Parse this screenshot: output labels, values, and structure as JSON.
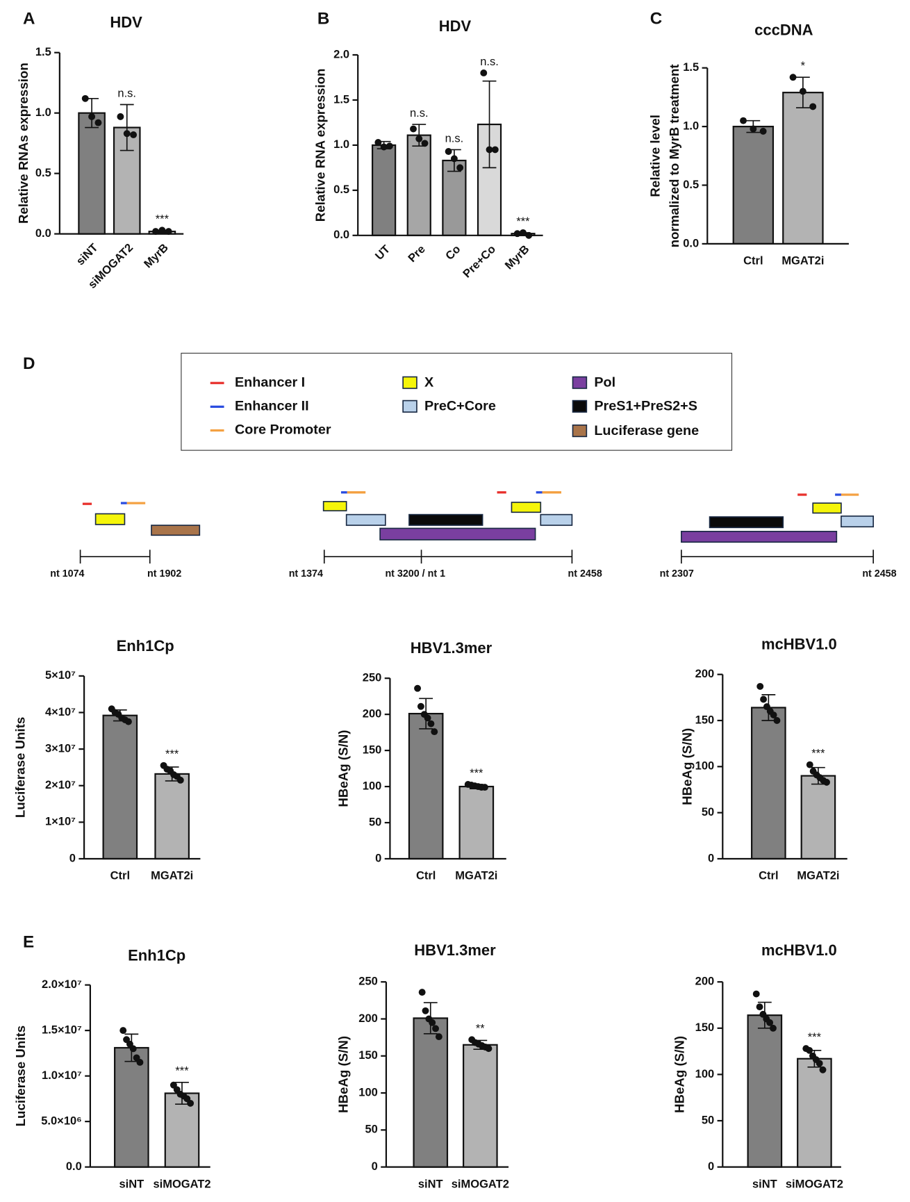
{
  "panel_labels": [
    "A",
    "B",
    "C",
    "D",
    "E"
  ],
  "diagram": {
    "legend": [
      {
        "label": "Enhancer I",
        "color": "#e8312d",
        "kind": "line"
      },
      {
        "label": "Enhancer II",
        "color": "#2b4de0",
        "kind": "line"
      },
      {
        "label": "Core Promoter",
        "color": "#f4a142",
        "kind": "line"
      },
      {
        "label": "X",
        "color": "#f5f50a",
        "kind": "box"
      },
      {
        "label": "PreC+Core",
        "color": "#b9d1ea",
        "kind": "box"
      },
      {
        "label": "Pol",
        "color": "#7a3fa0",
        "kind": "box"
      },
      {
        "label": "PreS1+PreS2+S",
        "color": "#0a0a0a",
        "kind": "box"
      },
      {
        "label": "Luciferase gene",
        "color": "#a9744a",
        "kind": "box"
      }
    ],
    "maps": [
      {
        "labels": [
          "nt 1074",
          "nt 1902"
        ]
      },
      {
        "labels": [
          "nt 1374",
          "nt 3200 / nt 1",
          "nt 2458"
        ]
      },
      {
        "labels": [
          "nt 2307",
          "nt 2458"
        ]
      }
    ]
  },
  "chart_data": [
    {
      "type": "bar",
      "title": "HDV",
      "ylabel": [
        "Relative RNAs expression"
      ],
      "categories": [
        "siNT",
        "siMOGAT2",
        "MyrB"
      ],
      "values": [
        1.0,
        0.88,
        0.02
      ],
      "errors": [
        0.12,
        0.19,
        0.01
      ],
      "points": [
        [
          1.12,
          0.97,
          0.92
        ],
        [
          0.97,
          0.83,
          0.82
        ],
        [
          0.02,
          0.03,
          0.02
        ]
      ],
      "annotations": [
        null,
        "n.s.",
        "***"
      ],
      "colors": [
        "#808080",
        "#b3b3b3",
        "#e0e0e0"
      ],
      "ylim": [
        0,
        1.5
      ],
      "yticks": [
        {
          "value": 0,
          "label": "0.0"
        },
        0.5,
        {
          "value": 1,
          "label": "1.0"
        },
        1.5
      ]
    },
    {
      "type": "bar",
      "title": "HDV",
      "ylabel": [
        "Relative RNA expression"
      ],
      "categories": [
        "UT",
        "Pre",
        "Co",
        "Pre+Co",
        "MyrB"
      ],
      "values": [
        1.0,
        1.11,
        0.83,
        1.23,
        0.02
      ],
      "errors": [
        0.04,
        0.12,
        0.12,
        0.48,
        0.01
      ],
      "points": [
        [
          1.03,
          0.98,
          0.99
        ],
        [
          1.18,
          1.07,
          1.02
        ],
        [
          0.93,
          0.85,
          0.75
        ],
        [
          1.8,
          0.95,
          0.95
        ],
        [
          0.02,
          0.03,
          0.0
        ]
      ],
      "annotations": [
        null,
        "n.s.",
        "n.s.",
        "n.s.",
        "***"
      ],
      "colors": [
        "#808080",
        "#a6a6a6",
        "#999999",
        "#d9d9d9",
        "#e0e0e0"
      ],
      "ylim": [
        0,
        2
      ],
      "yticks": [
        {
          "value": 0,
          "label": "0.0"
        },
        0.5,
        {
          "value": 1,
          "label": "1.0"
        },
        1.5,
        {
          "value": 2,
          "label": "2.0"
        }
      ]
    },
    {
      "type": "bar",
      "title": "cccDNA",
      "ylabel": [
        "Relative level",
        "normalized to MyrB treatment"
      ],
      "categories": [
        "Ctrl",
        "MGAT2i"
      ],
      "values": [
        1.0,
        1.29
      ],
      "errors": [
        0.05,
        0.13
      ],
      "points": [
        [
          1.05,
          0.98,
          0.96
        ],
        [
          1.42,
          1.3,
          1.17
        ]
      ],
      "annotations": [
        null,
        "*"
      ],
      "colors": [
        "#808080",
        "#b3b3b3"
      ],
      "ylim": [
        0,
        1.5
      ],
      "yticks": [
        {
          "value": 0,
          "label": "0.0"
        },
        0.5,
        {
          "value": 1,
          "label": "1.0"
        },
        1.5
      ]
    },
    {
      "type": "bar",
      "title": "Enh1Cp",
      "ylabel": [
        "Luciferase Units"
      ],
      "categories": [
        "Ctrl",
        "MGAT2i"
      ],
      "values": [
        39200000,
        23200000
      ],
      "errors": [
        1500000,
        1900000
      ],
      "points": [
        [
          41000000,
          40000000,
          39500000,
          38500000,
          38000000,
          37500000
        ],
        [
          25500000,
          24500000,
          24000000,
          23000000,
          22500000,
          21500000
        ]
      ],
      "annotations": [
        null,
        "***"
      ],
      "colors": [
        "#808080",
        "#b3b3b3"
      ],
      "ylim": [
        0,
        50000000
      ],
      "yticks": [
        0,
        {
          "value": 10000000,
          "label": "1×10⁷"
        },
        {
          "value": 20000000,
          "label": "2×10⁷"
        },
        {
          "value": 30000000,
          "label": "3×10⁷"
        },
        {
          "value": 40000000,
          "label": "4×10⁷"
        },
        {
          "value": 50000000,
          "label": "5×10⁷"
        }
      ]
    },
    {
      "type": "bar",
      "title": "HBV1.3mer",
      "ylabel": [
        "HBeAg (S/N)"
      ],
      "categories": [
        "Ctrl",
        "MGAT2i"
      ],
      "values": [
        201,
        100
      ],
      "errors": [
        21,
        3
      ],
      "points": [
        [
          236,
          211,
          200,
          195,
          187,
          176
        ],
        [
          103,
          102,
          101,
          100,
          99,
          99
        ]
      ],
      "annotations": [
        null,
        "***"
      ],
      "colors": [
        "#808080",
        "#b3b3b3"
      ],
      "ylim": [
        0,
        250
      ],
      "yticks": [
        0,
        50,
        100,
        150,
        200,
        250
      ]
    },
    {
      "type": "bar",
      "title": "mcHBV1.0",
      "ylabel": [
        "HBeAg (S/N)"
      ],
      "categories": [
        "Ctrl",
        "MGAT2i"
      ],
      "values": [
        164,
        90
      ],
      "errors": [
        14,
        9
      ],
      "points": [
        [
          187,
          173,
          165,
          160,
          156,
          150
        ],
        [
          102,
          95,
          91,
          88,
          85,
          83
        ]
      ],
      "annotations": [
        null,
        "***"
      ],
      "colors": [
        "#808080",
        "#b3b3b3"
      ],
      "ylim": [
        0,
        200
      ],
      "yticks": [
        0,
        50,
        100,
        150,
        200
      ]
    },
    {
      "type": "bar",
      "title": "Enh1Cp",
      "ylabel": [
        "Luciferase Units"
      ],
      "categories": [
        "siNT",
        "siMOGAT2"
      ],
      "values": [
        13100000,
        8100000
      ],
      "errors": [
        1500000,
        1200000
      ],
      "points": [
        [
          15000000,
          14000000,
          13500000,
          13000000,
          12000000,
          11500000
        ],
        [
          9000000,
          8500000,
          8000000,
          7800000,
          7500000,
          7000000
        ]
      ],
      "annotations": [
        null,
        "***"
      ],
      "colors": [
        "#808080",
        "#b3b3b3"
      ],
      "ylim": [
        0,
        20000000
      ],
      "yticks": [
        {
          "value": 0,
          "label": "0.0"
        },
        {
          "value": 5000000,
          "label": "5.0×10⁶"
        },
        {
          "value": 10000000,
          "label": "1.0×10⁷"
        },
        {
          "value": 15000000,
          "label": "1.5×10⁷"
        },
        {
          "value": 20000000,
          "label": "2.0×10⁷"
        }
      ]
    },
    {
      "type": "bar",
      "title": "HBV1.3mer",
      "ylabel": [
        "HBeAg (S/N)"
      ],
      "categories": [
        "siNT",
        "siMOGAT2"
      ],
      "values": [
        201,
        165
      ],
      "errors": [
        21,
        6
      ],
      "points": [
        [
          236,
          211,
          200,
          195,
          187,
          176
        ],
        [
          172,
          168,
          166,
          164,
          162,
          160
        ]
      ],
      "annotations": [
        null,
        "**"
      ],
      "colors": [
        "#808080",
        "#b3b3b3"
      ],
      "ylim": [
        0,
        250
      ],
      "yticks": [
        0,
        50,
        100,
        150,
        200,
        250
      ]
    },
    {
      "type": "bar",
      "title": "mcHBV1.0",
      "ylabel": [
        "HBeAg (S/N)"
      ],
      "categories": [
        "siNT",
        "siMOGAT2"
      ],
      "values": [
        164,
        117
      ],
      "errors": [
        14,
        9
      ],
      "points": [
        [
          187,
          173,
          165,
          160,
          156,
          150
        ],
        [
          128,
          126,
          120,
          116,
          112,
          105
        ]
      ],
      "annotations": [
        null,
        "***"
      ],
      "colors": [
        "#808080",
        "#b3b3b3"
      ],
      "ylim": [
        0,
        200
      ],
      "yticks": [
        0,
        50,
        100,
        150,
        200
      ]
    }
  ]
}
